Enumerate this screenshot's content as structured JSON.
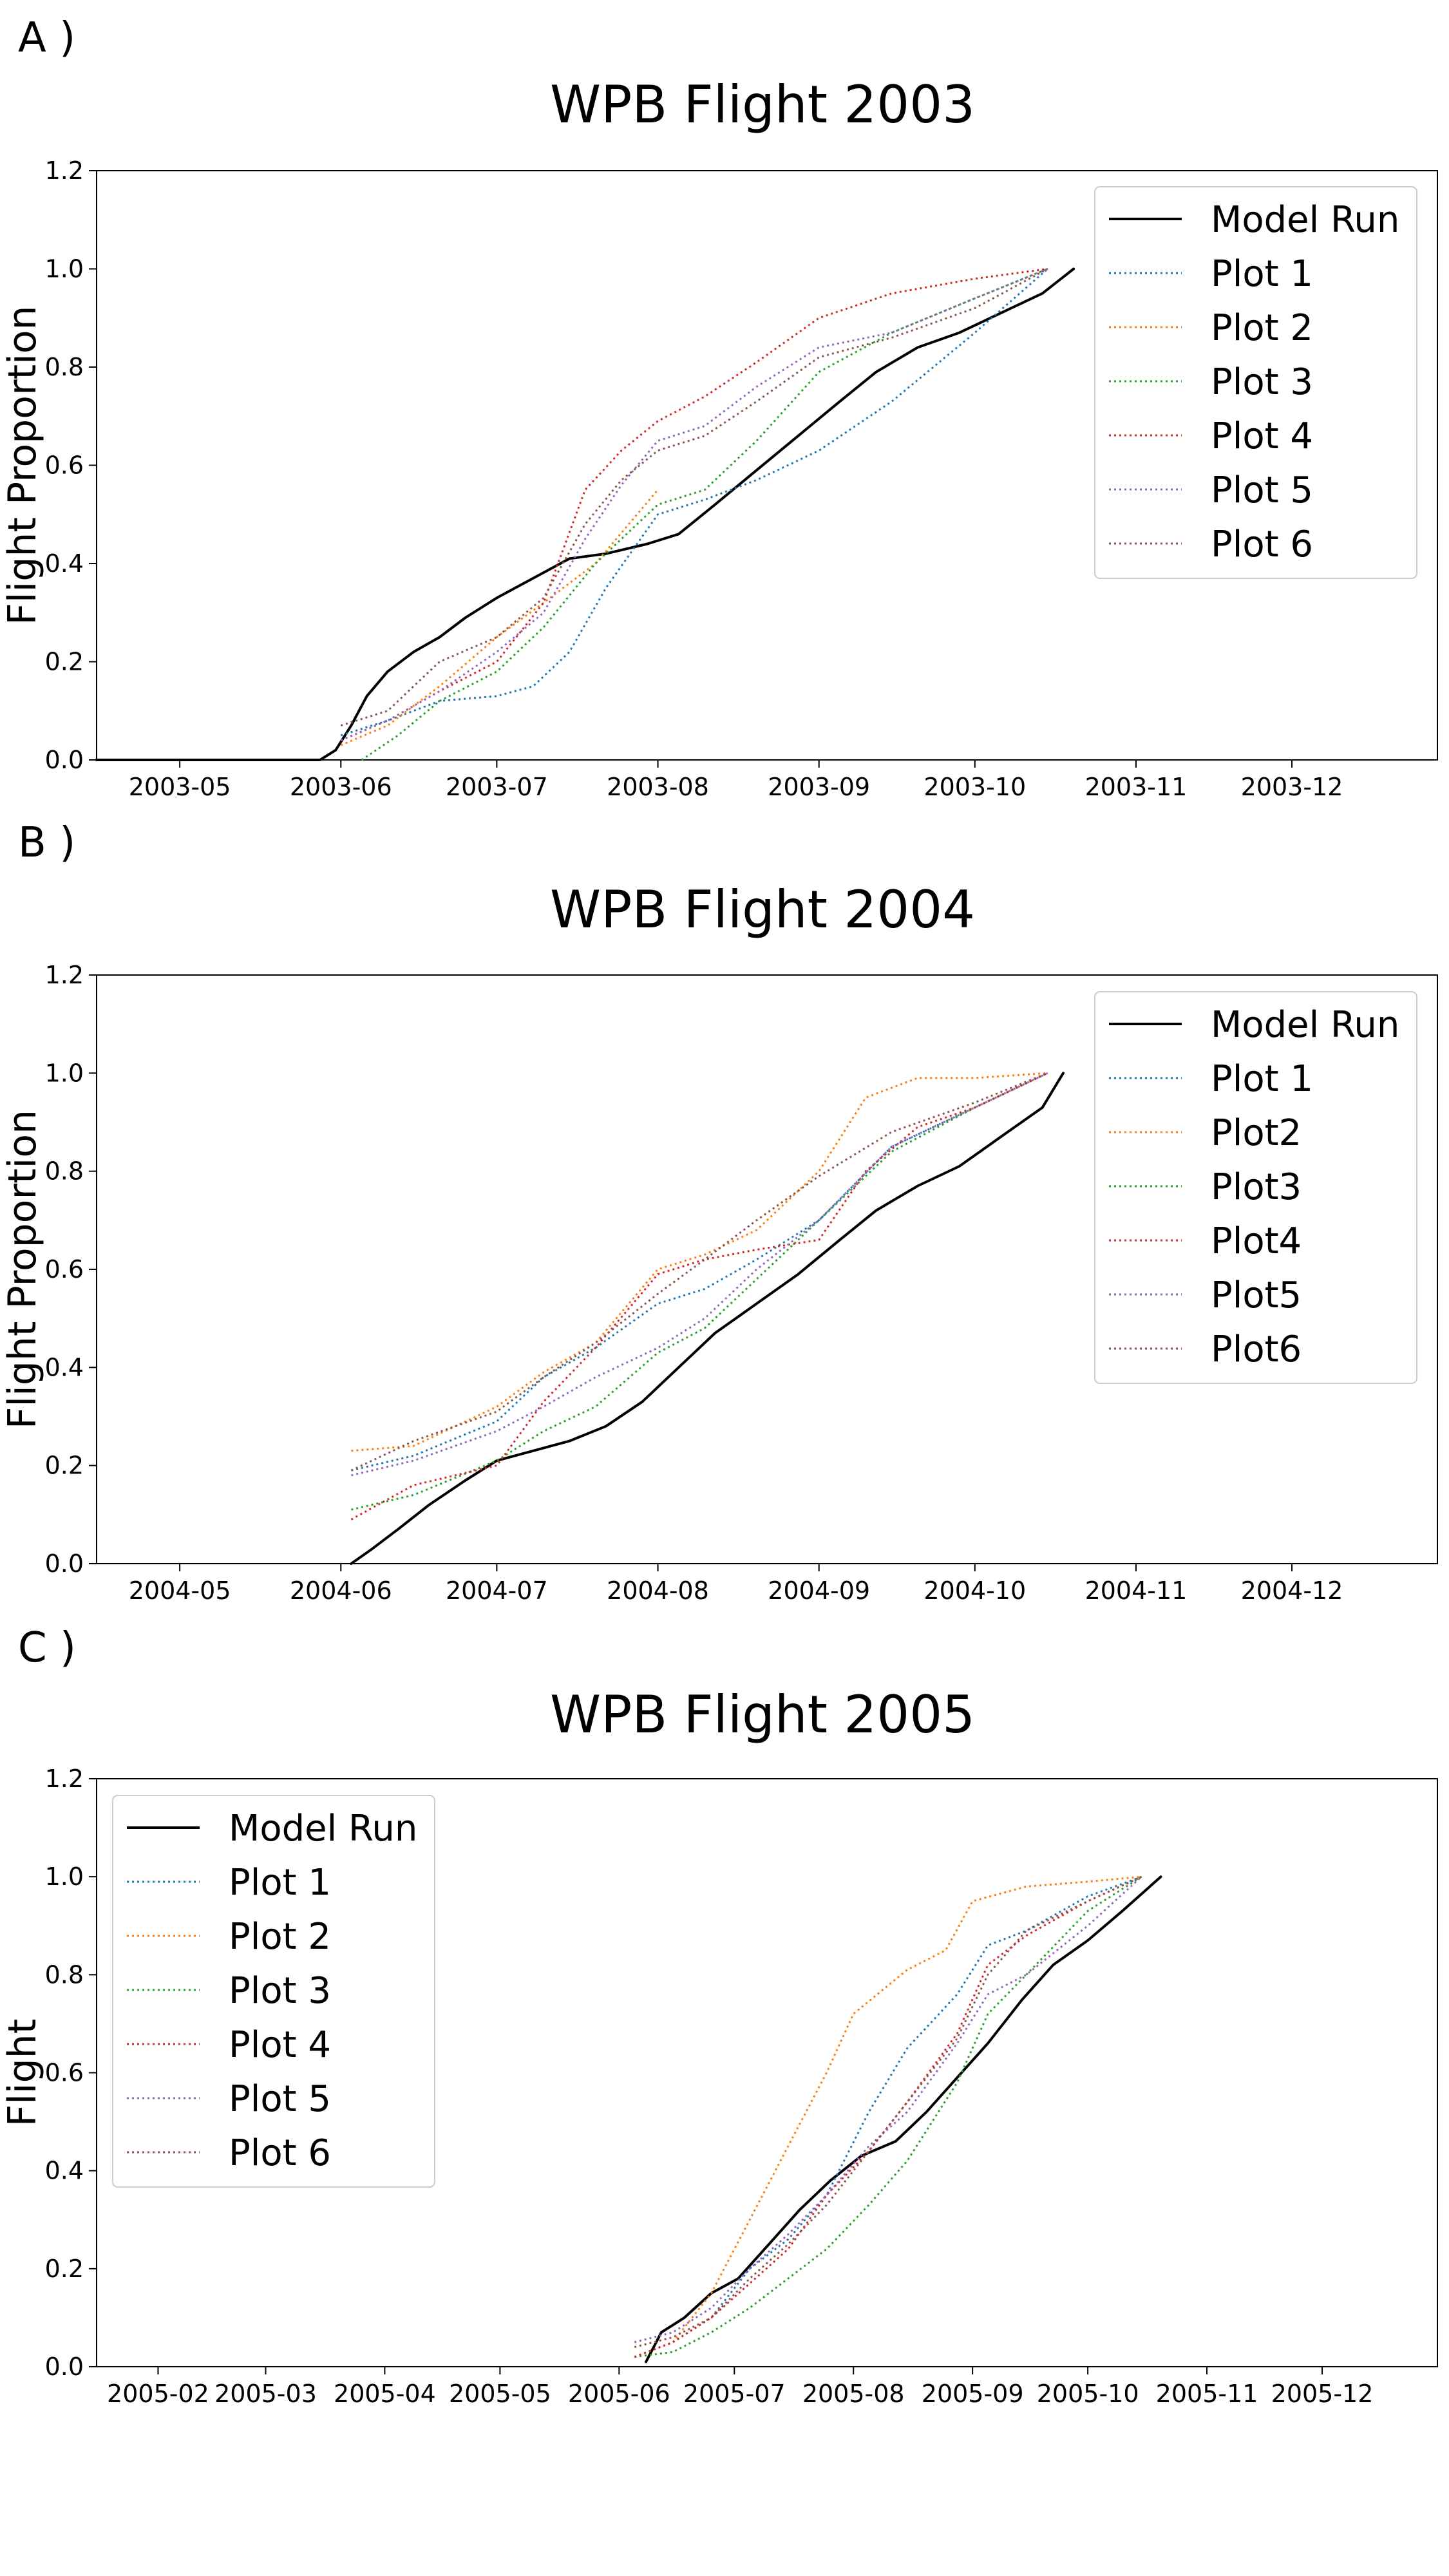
{
  "colors": {
    "model": "#000000",
    "plot1": "#1f77b4",
    "plot2": "#ff7f0e",
    "plot3": "#2ca02c",
    "plot4": "#d62728",
    "plot5": "#9467bd",
    "plot6": "#8c564b"
  },
  "chart_data": [
    {
      "type": "line",
      "panel_label": "A )",
      "title": "WPB Flight 2003",
      "xlabel": "",
      "ylabel": "Flight Proportion",
      "xlim": [
        "2003-04-15",
        "2003-12-29"
      ],
      "ylim": [
        0,
        1.2
      ],
      "x_ticks": [
        "2003-05",
        "2003-06",
        "2003-07",
        "2003-08",
        "2003-09",
        "2003-10",
        "2003-11",
        "2003-12"
      ],
      "y_ticks": [
        "0.0",
        "0.2",
        "0.4",
        "0.6",
        "0.8",
        "1.0",
        "1.2"
      ],
      "grid": false,
      "legend_position": "top-right",
      "series": [
        {
          "name": "Model Run",
          "color": "#000000",
          "style": "solid",
          "x": [
            "2003-04-15",
            "2003-05-28",
            "2003-05-31",
            "2003-06-03",
            "2003-06-06",
            "2003-06-10",
            "2003-06-15",
            "2003-06-20",
            "2003-06-25",
            "2003-07-01",
            "2003-07-08",
            "2003-07-15",
            "2003-07-22",
            "2003-07-30",
            "2003-08-05",
            "2003-08-12",
            "2003-08-20",
            "2003-08-28",
            "2003-09-05",
            "2003-09-12",
            "2003-09-20",
            "2003-09-28",
            "2003-10-06",
            "2003-10-14",
            "2003-10-20"
          ],
          "y": [
            0,
            0,
            0.02,
            0.07,
            0.13,
            0.18,
            0.22,
            0.25,
            0.29,
            0.33,
            0.37,
            0.41,
            0.42,
            0.44,
            0.46,
            0.52,
            0.59,
            0.66,
            0.73,
            0.79,
            0.84,
            0.87,
            0.91,
            0.95,
            1.0
          ]
        },
        {
          "name": "Plot 1",
          "color": "#1f77b4",
          "style": "dotted",
          "x": [
            "2003-06-01",
            "2003-06-10",
            "2003-06-20",
            "2003-07-01",
            "2003-07-08",
            "2003-07-15",
            "2003-07-22",
            "2003-08-01",
            "2003-08-10",
            "2003-08-20",
            "2003-09-01",
            "2003-09-15",
            "2003-10-01",
            "2003-10-15"
          ],
          "y": [
            0.05,
            0.08,
            0.12,
            0.13,
            0.15,
            0.22,
            0.35,
            0.5,
            0.53,
            0.57,
            0.63,
            0.73,
            0.87,
            1.0
          ]
        },
        {
          "name": "Plot 2",
          "color": "#ff7f0e",
          "style": "dotted",
          "x": [
            "2003-06-01",
            "2003-06-10",
            "2003-06-20",
            "2003-07-01",
            "2003-07-10",
            "2003-07-20",
            "2003-08-01"
          ],
          "y": [
            0.03,
            0.07,
            0.15,
            0.25,
            0.32,
            0.4,
            0.55
          ]
        },
        {
          "name": "Plot 3",
          "color": "#2ca02c",
          "style": "dotted",
          "x": [
            "2003-06-05",
            "2003-06-12",
            "2003-06-20",
            "2003-07-01",
            "2003-07-10",
            "2003-07-20",
            "2003-08-01",
            "2003-08-10",
            "2003-08-20",
            "2003-09-01",
            "2003-09-15",
            "2003-10-01",
            "2003-10-15"
          ],
          "y": [
            0.0,
            0.05,
            0.12,
            0.18,
            0.27,
            0.4,
            0.52,
            0.55,
            0.65,
            0.79,
            0.87,
            0.94,
            1.0
          ]
        },
        {
          "name": "Plot 4",
          "color": "#d62728",
          "style": "dotted",
          "x": [
            "2003-06-01",
            "2003-06-10",
            "2003-06-20",
            "2003-07-01",
            "2003-07-10",
            "2003-07-18",
            "2003-07-25",
            "2003-08-01",
            "2003-08-10",
            "2003-08-20",
            "2003-09-01",
            "2003-09-15",
            "2003-10-01",
            "2003-10-15"
          ],
          "y": [
            0.04,
            0.08,
            0.14,
            0.2,
            0.32,
            0.55,
            0.63,
            0.69,
            0.74,
            0.81,
            0.9,
            0.95,
            0.98,
            1.0
          ]
        },
        {
          "name": "Plot 5",
          "color": "#9467bd",
          "style": "dotted",
          "x": [
            "2003-06-01",
            "2003-06-10",
            "2003-06-20",
            "2003-07-01",
            "2003-07-10",
            "2003-07-18",
            "2003-07-25",
            "2003-08-01",
            "2003-08-10",
            "2003-08-20",
            "2003-09-01",
            "2003-09-15",
            "2003-10-01",
            "2003-10-15"
          ],
          "y": [
            0.04,
            0.08,
            0.14,
            0.22,
            0.3,
            0.45,
            0.56,
            0.65,
            0.68,
            0.76,
            0.84,
            0.87,
            0.94,
            1.0
          ]
        },
        {
          "name": "Plot 6",
          "color": "#8c564b",
          "style": "dotted",
          "x": [
            "2003-06-01",
            "2003-06-10",
            "2003-06-20",
            "2003-07-01",
            "2003-07-10",
            "2003-07-18",
            "2003-07-25",
            "2003-08-01",
            "2003-08-10",
            "2003-08-20",
            "2003-09-01",
            "2003-09-15",
            "2003-10-01",
            "2003-10-15"
          ],
          "y": [
            0.07,
            0.1,
            0.2,
            0.25,
            0.33,
            0.48,
            0.57,
            0.63,
            0.66,
            0.73,
            0.82,
            0.86,
            0.92,
            1.0
          ]
        }
      ]
    },
    {
      "type": "line",
      "panel_label": "B )",
      "title": "WPB Flight 2004",
      "xlabel": "",
      "ylabel": "Flight Proportion",
      "xlim": [
        "2004-04-15",
        "2004-12-29"
      ],
      "ylim": [
        0,
        1.2
      ],
      "x_ticks": [
        "2004-05",
        "2004-06",
        "2004-07",
        "2004-08",
        "2004-09",
        "2004-10",
        "2004-11",
        "2004-12"
      ],
      "y_ticks": [
        "0.0",
        "0.2",
        "0.4",
        "0.6",
        "0.8",
        "1.0",
        "1.2"
      ],
      "grid": false,
      "legend_position": "top-right",
      "series": [
        {
          "name": "Model Run",
          "color": "#000000",
          "style": "solid",
          "x": [
            "2004-06-03",
            "2004-06-07",
            "2004-06-12",
            "2004-06-18",
            "2004-06-25",
            "2004-07-01",
            "2004-07-08",
            "2004-07-15",
            "2004-07-22",
            "2004-07-29",
            "2004-08-05",
            "2004-08-12",
            "2004-08-20",
            "2004-08-28",
            "2004-09-05",
            "2004-09-12",
            "2004-09-20",
            "2004-09-28",
            "2004-10-06",
            "2004-10-14",
            "2004-10-18"
          ],
          "y": [
            0,
            0.03,
            0.07,
            0.12,
            0.17,
            0.21,
            0.23,
            0.25,
            0.28,
            0.33,
            0.4,
            0.47,
            0.53,
            0.59,
            0.66,
            0.72,
            0.77,
            0.81,
            0.87,
            0.93,
            1.0
          ]
        },
        {
          "name": "Plot 1",
          "color": "#1f77b4",
          "style": "dotted",
          "x": [
            "2004-06-03",
            "2004-06-15",
            "2004-07-01",
            "2004-07-10",
            "2004-07-20",
            "2004-08-01",
            "2004-08-10",
            "2004-08-20",
            "2004-09-01",
            "2004-09-15",
            "2004-10-01",
            "2004-10-15"
          ],
          "y": [
            0.19,
            0.22,
            0.29,
            0.38,
            0.44,
            0.53,
            0.56,
            0.62,
            0.7,
            0.85,
            0.93,
            1.0
          ]
        },
        {
          "name": "Plot2",
          "color": "#ff7f0e",
          "style": "dotted",
          "x": [
            "2004-06-03",
            "2004-06-15",
            "2004-07-01",
            "2004-07-10",
            "2004-07-20",
            "2004-08-01",
            "2004-08-10",
            "2004-08-20",
            "2004-09-01",
            "2004-09-10",
            "2004-09-20",
            "2004-10-01",
            "2004-10-15"
          ],
          "y": [
            0.23,
            0.24,
            0.32,
            0.39,
            0.45,
            0.6,
            0.63,
            0.68,
            0.8,
            0.95,
            0.99,
            0.99,
            1.0
          ]
        },
        {
          "name": "Plot3",
          "color": "#2ca02c",
          "style": "dotted",
          "x": [
            "2004-06-03",
            "2004-06-15",
            "2004-07-01",
            "2004-07-10",
            "2004-07-20",
            "2004-08-01",
            "2004-08-10",
            "2004-08-20",
            "2004-09-01",
            "2004-09-15",
            "2004-10-01",
            "2004-10-15"
          ],
          "y": [
            0.11,
            0.14,
            0.21,
            0.27,
            0.32,
            0.43,
            0.48,
            0.58,
            0.7,
            0.84,
            0.93,
            1.0
          ]
        },
        {
          "name": "Plot4",
          "color": "#d62728",
          "style": "dotted",
          "x": [
            "2004-06-03",
            "2004-06-15",
            "2004-07-01",
            "2004-07-10",
            "2004-07-20",
            "2004-08-01",
            "2004-08-10",
            "2004-08-20",
            "2004-09-01",
            "2004-09-10",
            "2004-09-20",
            "2004-10-01",
            "2004-10-15"
          ],
          "y": [
            0.09,
            0.16,
            0.2,
            0.33,
            0.44,
            0.59,
            0.62,
            0.64,
            0.66,
            0.8,
            0.89,
            0.93,
            1.0
          ]
        },
        {
          "name": "Plot5",
          "color": "#9467bd",
          "style": "dotted",
          "x": [
            "2004-06-03",
            "2004-06-15",
            "2004-07-01",
            "2004-07-10",
            "2004-07-20",
            "2004-08-01",
            "2004-08-10",
            "2004-08-20",
            "2004-09-01",
            "2004-09-15",
            "2004-10-01",
            "2004-10-15"
          ],
          "y": [
            0.18,
            0.21,
            0.27,
            0.32,
            0.38,
            0.44,
            0.5,
            0.6,
            0.7,
            0.85,
            0.93,
            1.0
          ]
        },
        {
          "name": "Plot6",
          "color": "#8c564b",
          "style": "dotted",
          "x": [
            "2004-06-03",
            "2004-06-15",
            "2004-07-01",
            "2004-07-10",
            "2004-07-20",
            "2004-08-01",
            "2004-08-10",
            "2004-08-20",
            "2004-09-01",
            "2004-09-15",
            "2004-10-01",
            "2004-10-15"
          ],
          "y": [
            0.19,
            0.25,
            0.31,
            0.38,
            0.45,
            0.55,
            0.62,
            0.7,
            0.79,
            0.88,
            0.94,
            1.0
          ]
        }
      ]
    },
    {
      "type": "line",
      "panel_label": "C )",
      "title": "WPB Flight 2005",
      "xlabel": "",
      "ylabel": "Flight",
      "xlim": [
        "2005-01-16",
        "2005-12-31"
      ],
      "ylim": [
        0,
        1.2
      ],
      "x_ticks": [
        "2005-02",
        "2005-03",
        "2005-04",
        "2005-05",
        "2005-06",
        "2005-07",
        "2005-08",
        "2005-09",
        "2005-10",
        "2005-11",
        "2005-12"
      ],
      "y_ticks": [
        "0.0",
        "0.2",
        "0.4",
        "0.6",
        "0.8",
        "1.0",
        "1.2"
      ],
      "grid": false,
      "legend_position": "top-left",
      "series": [
        {
          "name": "Model Run",
          "color": "#000000",
          "style": "solid",
          "x": [
            "2005-06-08",
            "2005-06-12",
            "2005-06-18",
            "2005-06-25",
            "2005-07-02",
            "2005-07-10",
            "2005-07-18",
            "2005-07-26",
            "2005-08-03",
            "2005-08-12",
            "2005-08-20",
            "2005-08-28",
            "2005-09-05",
            "2005-09-14",
            "2005-09-22",
            "2005-10-01",
            "2005-10-10",
            "2005-10-20"
          ],
          "y": [
            0.01,
            0.07,
            0.1,
            0.15,
            0.18,
            0.25,
            0.32,
            0.38,
            0.43,
            0.46,
            0.52,
            0.59,
            0.66,
            0.75,
            0.82,
            0.87,
            0.93,
            1.0
          ]
        },
        {
          "name": "Plot 1",
          "color": "#1f77b4",
          "style": "dotted",
          "x": [
            "2005-06-05",
            "2005-06-15",
            "2005-06-25",
            "2005-07-05",
            "2005-07-15",
            "2005-07-25",
            "2005-08-05",
            "2005-08-15",
            "2005-08-28",
            "2005-09-05",
            "2005-09-15",
            "2005-10-01",
            "2005-10-15"
          ],
          "y": [
            0.02,
            0.05,
            0.1,
            0.2,
            0.26,
            0.35,
            0.52,
            0.65,
            0.76,
            0.86,
            0.89,
            0.96,
            1.0
          ]
        },
        {
          "name": "Plot 2",
          "color": "#ff7f0e",
          "style": "dotted",
          "x": [
            "2005-06-05",
            "2005-06-15",
            "2005-06-25",
            "2005-07-05",
            "2005-07-15",
            "2005-07-25",
            "2005-08-01",
            "2005-08-15",
            "2005-08-25",
            "2005-09-01",
            "2005-09-15",
            "2005-10-01",
            "2005-10-15"
          ],
          "y": [
            0.02,
            0.05,
            0.15,
            0.3,
            0.45,
            0.6,
            0.72,
            0.81,
            0.85,
            0.95,
            0.98,
            0.99,
            1.0
          ]
        },
        {
          "name": "Plot 3",
          "color": "#2ca02c",
          "style": "dotted",
          "x": [
            "2005-06-05",
            "2005-06-15",
            "2005-06-25",
            "2005-07-05",
            "2005-07-15",
            "2005-07-25",
            "2005-08-05",
            "2005-08-15",
            "2005-08-28",
            "2005-09-05",
            "2005-09-15",
            "2005-10-01",
            "2005-10-15"
          ],
          "y": [
            0.02,
            0.03,
            0.07,
            0.12,
            0.18,
            0.24,
            0.33,
            0.42,
            0.58,
            0.72,
            0.8,
            0.93,
            1.0
          ]
        },
        {
          "name": "Plot 4",
          "color": "#d62728",
          "style": "dotted",
          "x": [
            "2005-06-05",
            "2005-06-15",
            "2005-06-25",
            "2005-07-05",
            "2005-07-15",
            "2005-07-25",
            "2005-08-05",
            "2005-08-15",
            "2005-08-28",
            "2005-09-05",
            "2005-09-15",
            "2005-10-01",
            "2005-10-15"
          ],
          "y": [
            0.02,
            0.05,
            0.1,
            0.17,
            0.24,
            0.35,
            0.44,
            0.54,
            0.68,
            0.82,
            0.88,
            0.95,
            1.0
          ]
        },
        {
          "name": "Plot 5",
          "color": "#9467bd",
          "style": "dotted",
          "x": [
            "2005-06-05",
            "2005-06-15",
            "2005-06-25",
            "2005-07-05",
            "2005-07-15",
            "2005-07-25",
            "2005-08-05",
            "2005-08-15",
            "2005-08-28",
            "2005-09-05",
            "2005-09-15",
            "2005-10-01",
            "2005-10-15"
          ],
          "y": [
            0.05,
            0.07,
            0.12,
            0.2,
            0.27,
            0.35,
            0.45,
            0.52,
            0.66,
            0.76,
            0.8,
            0.9,
            1.0
          ]
        },
        {
          "name": "Plot 6",
          "color": "#8c564b",
          "style": "dotted",
          "x": [
            "2005-06-05",
            "2005-06-15",
            "2005-06-25",
            "2005-07-05",
            "2005-07-15",
            "2005-07-25",
            "2005-08-05",
            "2005-08-15",
            "2005-08-28",
            "2005-09-05",
            "2005-09-15",
            "2005-10-01",
            "2005-10-15"
          ],
          "y": [
            0.04,
            0.06,
            0.1,
            0.18,
            0.25,
            0.33,
            0.44,
            0.54,
            0.67,
            0.8,
            0.89,
            0.95,
            1.0
          ]
        }
      ]
    }
  ]
}
